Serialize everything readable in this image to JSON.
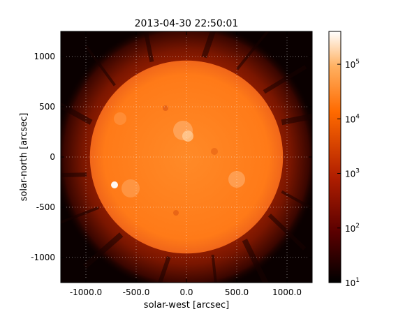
{
  "chart_data": {
    "type": "heatmap",
    "title": "2013-04-30 22:50:01",
    "xlabel": "solar-west [arcsec]",
    "ylabel": "solar-north [arcsec]",
    "xlim": [
      -1250,
      1250
    ],
    "ylim": [
      -1250,
      1250
    ],
    "grid": true,
    "x_ticks": [
      -1000,
      -500,
      0,
      500,
      1000
    ],
    "x_tick_labels": [
      "-1000.0",
      "-500.0",
      "0.0",
      "500.0",
      "1000.0"
    ],
    "y_ticks": [
      1000,
      500,
      0,
      -500,
      -1000
    ],
    "y_tick_labels": [
      "1000",
      "500",
      "0",
      "-500",
      "-1000"
    ],
    "colorbar": {
      "scale": "log",
      "range": [
        10,
        400000
      ],
      "ticks": [
        {
          "value": 100000,
          "base": "10",
          "exponent": "5"
        },
        {
          "value": 10000,
          "base": "10",
          "exponent": "4"
        },
        {
          "value": 1000,
          "base": "10",
          "exponent": "3"
        },
        {
          "value": 100,
          "base": "10",
          "exponent": "2"
        },
        {
          "value": 10,
          "base": "10",
          "exponent": "1"
        }
      ],
      "colormap": [
        "#000000",
        "#5a0000",
        "#b01e00",
        "#ff6a00",
        "#ffb060",
        "#ffffff"
      ]
    },
    "solar_disk": {
      "center_x": 0,
      "center_y": 0,
      "radius": 960,
      "color": "#ff7f1e"
    },
    "corona_color": "#8a1800",
    "background_color": "#0a0000"
  }
}
